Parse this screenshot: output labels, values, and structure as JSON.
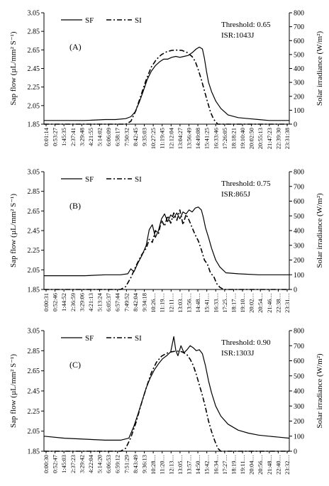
{
  "chart_data": [
    {
      "type": "line",
      "panel_label": "(A)",
      "annotation_threshold": "Threshold: 0.65",
      "annotation_isr": "ISR:1043J",
      "ylabel_left": "Sap flow (µL/mm² S⁻¹)",
      "ylabel_right": "Solar irradiance (W/m²)",
      "ylim_left": [
        1.85,
        3.05
      ],
      "yticks_left": [
        "1.85",
        "2.05",
        "2.25",
        "2.45",
        "2.65",
        "2.85",
        "3.05"
      ],
      "ylim_right": [
        0,
        800
      ],
      "yticks_right": [
        "0",
        "100",
        "200",
        "300",
        "400",
        "500",
        "600",
        "700",
        "800"
      ],
      "xticks": [
        "0:01:14",
        "0:53:27",
        "1:45:35",
        "2:37:41",
        "3:29:48",
        "4:21:55",
        "5:14:02",
        "6:06:09",
        "6:58:17",
        "7:50:32",
        "8:42:45",
        "9:35:03",
        "10:27:25",
        "11:19:45",
        "12:12:04",
        "13:04:27",
        "13:56:49",
        "14:49:08",
        "15:41:25",
        "16:33:46",
        "17:26:05",
        "18:18:21",
        "19:10:40",
        "20:02:50",
        "20:55:13",
        "21:47:23",
        "22:39:30",
        "23:31:38"
      ],
      "legend": [
        {
          "name": "SF",
          "style": "solid"
        },
        {
          "name": "SI",
          "style": "dash-dot"
        }
      ],
      "series": [
        {
          "name": "SF",
          "axis": "left",
          "x": [
            0,
            2,
            4,
            6,
            7,
            8,
            8.5,
            8.9,
            9.3,
            9.7,
            10.1,
            10.5,
            10.9,
            11.3,
            11.7,
            12.1,
            12.5,
            12.9,
            13.3,
            13.7,
            14.1,
            14.5,
            14.9,
            15.2,
            15.5,
            15.7,
            15.9,
            16.1,
            16.4,
            16.8,
            17.3,
            18,
            19,
            20,
            21,
            22,
            23,
            24
          ],
          "y": [
            1.89,
            1.89,
            1.89,
            1.9,
            1.9,
            1.91,
            1.93,
            1.98,
            2.08,
            2.2,
            2.33,
            2.42,
            2.48,
            2.52,
            2.55,
            2.55,
            2.57,
            2.58,
            2.57,
            2.58,
            2.59,
            2.62,
            2.66,
            2.68,
            2.66,
            2.56,
            2.42,
            2.3,
            2.2,
            2.1,
            2.02,
            1.95,
            1.92,
            1.91,
            1.9,
            1.89,
            1.89,
            1.89
          ]
        },
        {
          "name": "SI",
          "axis": "right",
          "x": [
            0,
            6,
            8,
            8.5,
            9,
            9.5,
            10,
            10.5,
            11,
            11.5,
            12,
            12.5,
            13,
            13.5,
            14,
            14.5,
            14.8,
            15.1,
            15.4,
            15.7,
            16,
            16.3,
            16.6,
            17,
            24
          ],
          "y": [
            0,
            0,
            0,
            20,
            100,
            210,
            320,
            410,
            465,
            500,
            520,
            530,
            532,
            530,
            515,
            485,
            450,
            390,
            320,
            240,
            160,
            85,
            35,
            0,
            0
          ]
        }
      ]
    },
    {
      "type": "line",
      "panel_label": "(B)",
      "annotation_threshold": "Threshold: 0.75",
      "annotation_isr": "ISR:865J",
      "ylabel_left": "Sap flow (µL/mm² S⁻¹)",
      "ylabel_right": "Solar irradiance (W/m²)",
      "ylim_left": [
        1.85,
        3.05
      ],
      "yticks_left": [
        "1.85",
        "2.05",
        "2.25",
        "2.45",
        "2.65",
        "2.85",
        "3.05"
      ],
      "ylim_right": [
        0,
        800
      ],
      "yticks_right": [
        "0",
        "100",
        "200",
        "300",
        "400",
        "500",
        "600",
        "700",
        "800"
      ],
      "xticks": [
        "0:00:31",
        "0:52:46",
        "1:44:52",
        "2:36:59",
        "3:29:06",
        "4:21:13",
        "5:13:24",
        "6:05:37",
        "6:57:44",
        "7:49:52",
        "8:42:04",
        "9:34:18",
        "10:26…",
        "11:19…",
        "12:11…",
        "13:03…",
        "13:56…",
        "14:48…",
        "15:41…",
        "16:33…",
        "17:25…",
        "18:17…",
        "19:10…",
        "20:02…",
        "20:54…",
        "21:46…",
        "22:38…",
        "23:31…"
      ],
      "legend": [
        {
          "name": "SF",
          "style": "solid"
        },
        {
          "name": "SI",
          "style": "dash-dot"
        }
      ],
      "series": [
        {
          "name": "SF",
          "axis": "left",
          "x": [
            0,
            2,
            4,
            6,
            7.5,
            8.2,
            8.5,
            8.8,
            9.2,
            9.6,
            10,
            10.3,
            10.6,
            10.9,
            11.2,
            11.5,
            11.8,
            12.1,
            12.4,
            12.7,
            13,
            13.3,
            13.6,
            13.9,
            14.2,
            14.5,
            14.8,
            15.1,
            15.4,
            15.6,
            15.8,
            16.1,
            16.4,
            16.8,
            17.2,
            17.8,
            19,
            21,
            23,
            24
          ],
          "y": [
            1.99,
            1.99,
            1.99,
            2.0,
            2.0,
            2.01,
            2.06,
            2.03,
            2.12,
            2.2,
            2.3,
            2.46,
            2.51,
            2.38,
            2.45,
            2.57,
            2.62,
            2.54,
            2.61,
            2.58,
            2.63,
            2.57,
            2.64,
            2.62,
            2.66,
            2.64,
            2.68,
            2.69,
            2.66,
            2.58,
            2.48,
            2.38,
            2.27,
            2.15,
            2.08,
            2.02,
            2.01,
            2.0,
            2.0,
            2.0
          ]
        },
        {
          "name": "SI",
          "axis": "right",
          "x": [
            0,
            7.5,
            8,
            8.5,
            9,
            9.5,
            10,
            10.3,
            10.6,
            10.9,
            11.2,
            11.5,
            11.8,
            12.1,
            12.4,
            12.7,
            13,
            13.3,
            13.6,
            13.9,
            14.2,
            14.5,
            14.8,
            15.1,
            15.4,
            15.7,
            16,
            16.3,
            16.6,
            16.9,
            17.2,
            17.6,
            24
          ],
          "y": [
            0,
            0,
            20,
            80,
            160,
            230,
            280,
            340,
            320,
            400,
            380,
            470,
            430,
            500,
            450,
            520,
            470,
            540,
            440,
            510,
            470,
            420,
            370,
            330,
            270,
            200,
            170,
            110,
            90,
            40,
            15,
            0,
            0
          ]
        }
      ]
    },
    {
      "type": "line",
      "panel_label": "(C)",
      "annotation_threshold": "Threshold: 0.90",
      "annotation_isr": "ISR:1303J",
      "ylabel_left": "Sap flow (µL/mm² S⁻¹)",
      "ylabel_right": "Solar irradiance (W/m²)",
      "ylim_left": [
        1.85,
        3.05
      ],
      "yticks_left": [
        "1.85",
        "2.05",
        "2.25",
        "2.45",
        "2.65",
        "2.85",
        "3.05"
      ],
      "ylim_right": [
        0,
        800
      ],
      "yticks_right": [
        "0",
        "100",
        "200",
        "300",
        "400",
        "500",
        "600",
        "700",
        "800"
      ],
      "xticks": [
        "0:00:30",
        "0:52:47",
        "1:45:03",
        "2:37:23",
        "3:29:42",
        "4:22:04",
        "5:14:20",
        "6:06:53",
        "6:59:12",
        "7:51:29",
        "8:43:49",
        "9:36:13",
        "10:28…",
        "11:20…",
        "12:13…",
        "13:05…",
        "13:57…",
        "14:50…",
        "15:42…",
        "16:34…",
        "17:27…",
        "18:19…",
        "19:11…",
        "20:04…",
        "20:56…",
        "21:48…",
        "22:40…",
        "23:32…"
      ],
      "legend": [
        {
          "name": "SF",
          "style": "solid"
        },
        {
          "name": "SI",
          "style": "dash-dot"
        }
      ],
      "series": [
        {
          "name": "SF",
          "axis": "left",
          "x": [
            0,
            2,
            4,
            6,
            7.5,
            8.3,
            8.8,
            9.2,
            9.6,
            10,
            10.4,
            10.8,
            11.2,
            11.6,
            12,
            12.4,
            12.7,
            12.9,
            13.1,
            13.4,
            13.7,
            14,
            14.3,
            14.6,
            14.9,
            15.2,
            15.5,
            15.8,
            16.1,
            16.4,
            16.8,
            17.3,
            18,
            19,
            20,
            21,
            22,
            23,
            24
          ],
          "y": [
            2.0,
            1.98,
            1.97,
            1.96,
            1.96,
            1.98,
            2.1,
            2.22,
            2.35,
            2.48,
            2.58,
            2.66,
            2.72,
            2.77,
            2.8,
            2.84,
            2.99,
            2.85,
            2.8,
            2.9,
            2.83,
            2.86,
            2.9,
            2.88,
            2.85,
            2.86,
            2.82,
            2.7,
            2.55,
            2.43,
            2.3,
            2.2,
            2.12,
            2.06,
            2.03,
            2.01,
            2.0,
            1.99,
            1.98
          ]
        },
        {
          "name": "SI",
          "axis": "right",
          "x": [
            0,
            7.5,
            8,
            8.5,
            9,
            9.5,
            10,
            10.5,
            11,
            11.5,
            12,
            12.5,
            13,
            13.5,
            14,
            14.3,
            14.6,
            14.9,
            15.2,
            15.5,
            15.8,
            16.1,
            16.4,
            16.7,
            17,
            17.3,
            24
          ],
          "y": [
            0,
            0,
            20,
            90,
            190,
            310,
            420,
            520,
            590,
            630,
            650,
            660,
            665,
            660,
            640,
            610,
            570,
            510,
            440,
            370,
            290,
            200,
            130,
            70,
            20,
            0,
            0
          ]
        }
      ]
    }
  ]
}
